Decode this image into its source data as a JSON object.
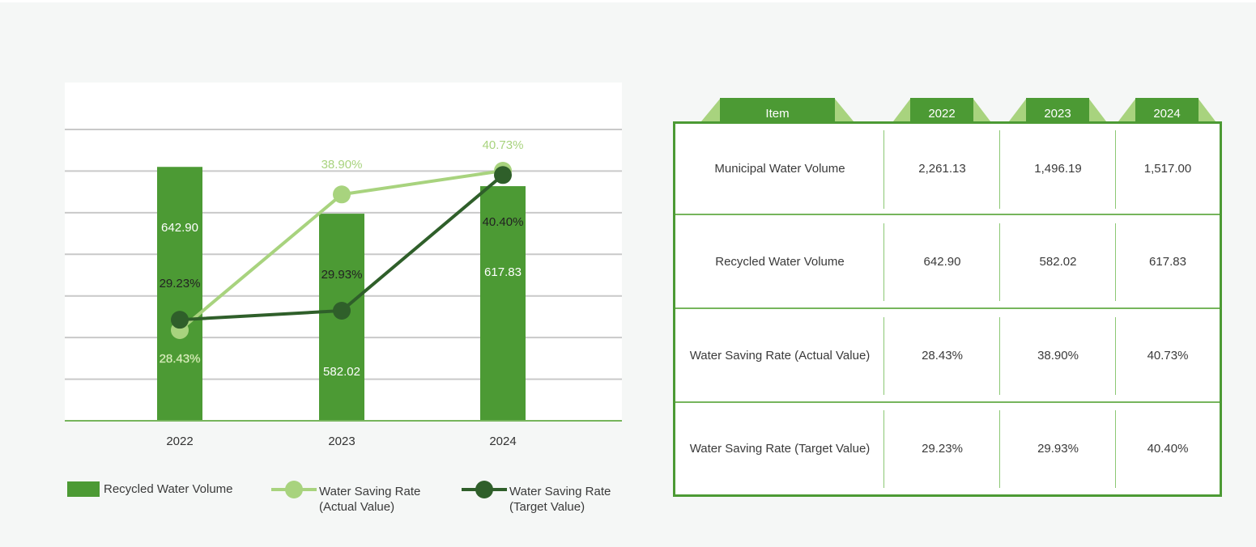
{
  "chart_data": {
    "type": "bar+line",
    "categories": [
      "2022",
      "2023",
      "2024"
    ],
    "bar_series": {
      "name": "Recycled Water Volume",
      "values": [
        642.9,
        582.02,
        617.83
      ],
      "labels": [
        "642.90",
        "582.02",
        "617.83"
      ],
      "color": "#4c9a34"
    },
    "line_series": [
      {
        "name": "Water Saving Rate (Actual Value)",
        "name_lines": [
          "Water Saving Rate",
          "(Actual Value)"
        ],
        "values": [
          28.43,
          38.9,
          40.73
        ],
        "labels": [
          "28.43%",
          "38.90%",
          "40.73%"
        ],
        "color": "#a8d37e"
      },
      {
        "name": "Water Saving Rate (Target Value)",
        "name_lines": [
          "Water Saving Rate",
          "(Target Value)"
        ],
        "values": [
          29.23,
          29.93,
          40.4
        ],
        "labels": [
          "29.23%",
          "29.93%",
          "40.40%"
        ],
        "color": "#2f5f2a"
      }
    ],
    "grid": true,
    "legend_position": "bottom"
  },
  "table": {
    "headers": [
      "Item",
      "2022",
      "2023",
      "2024"
    ],
    "rows": [
      {
        "item": "Municipal Water Volume",
        "values": [
          "2,261.13",
          "1,496.19",
          "1,517.00"
        ]
      },
      {
        "item": "Recycled Water Volume",
        "values": [
          "642.90",
          "582.02",
          "617.83"
        ]
      },
      {
        "item": "Water Saving Rate (Actual Value)",
        "values": [
          "28.43%",
          "38.90%",
          "40.73%"
        ]
      },
      {
        "item": "Water Saving Rate (Target Value)",
        "values": [
          "29.23%",
          "29.93%",
          "40.40%"
        ]
      }
    ]
  },
  "colors": {
    "primary_green": "#4c9a34",
    "light_green": "#a8d37e",
    "dark_green": "#2f5f2a"
  }
}
